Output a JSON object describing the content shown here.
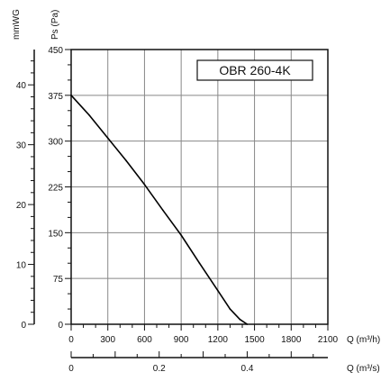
{
  "chart_data": {
    "type": "line",
    "model_label": "OBR 260-4K",
    "x_axis": {
      "label": "Q (m³/h)",
      "range": [
        0,
        2100
      ],
      "ticks": [
        0,
        300,
        600,
        900,
        1200,
        1500,
        1800,
        2100
      ]
    },
    "x2_axis": {
      "label": "Q (m³/s)",
      "range": [
        0,
        0.5833
      ],
      "ticks": [
        0,
        0.2,
        0.4
      ],
      "tick_labels": [
        "0",
        "0.2",
        "0.4"
      ]
    },
    "y_axis": {
      "label": "Ps (Pa)",
      "range": [
        0,
        450
      ],
      "ticks": [
        0,
        75,
        150,
        225,
        300,
        375,
        450
      ]
    },
    "y2_axis": {
      "label": "mmWG",
      "range": [
        0,
        45.9
      ],
      "ticks": [
        0,
        10,
        20,
        30,
        40
      ]
    },
    "grid": true,
    "series": [
      {
        "x": [
          0,
          150,
          300,
          450,
          600,
          750,
          900,
          1050,
          1200,
          1300,
          1380,
          1440
        ],
        "y": [
          375,
          342,
          305,
          268,
          229,
          187,
          146,
          100,
          55,
          25,
          8,
          0
        ]
      }
    ]
  }
}
